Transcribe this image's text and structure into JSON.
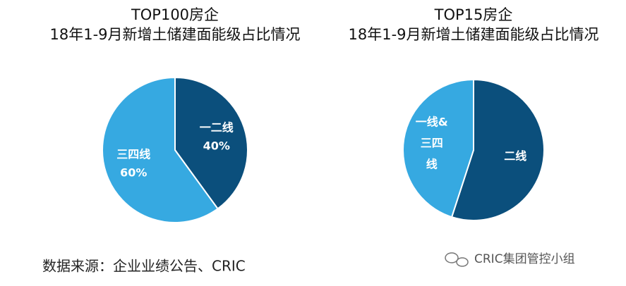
{
  "chart_data": [
    {
      "type": "pie",
      "title": "TOP100房企",
      "subtitle": "18年1-9月新增土储建面能级占比情况",
      "categories": [
        "一二线",
        "三四线"
      ],
      "values": [
        40,
        60
      ],
      "value_labels": [
        "40%",
        "60%"
      ],
      "colors": [
        "#0b4f7c",
        "#36a9e1"
      ]
    },
    {
      "type": "pie",
      "title": "TOP15房企",
      "subtitle": "18年1-9月新增土储建面能级占比情况",
      "categories": [
        "二线",
        "一线&三四线"
      ],
      "values": [
        55,
        45
      ],
      "colors": [
        "#0b4f7c",
        "#36a9e1"
      ]
    }
  ],
  "source": "数据来源：企业业绩公告、CRIC",
  "watermark": "CRIC集团管控小组"
}
